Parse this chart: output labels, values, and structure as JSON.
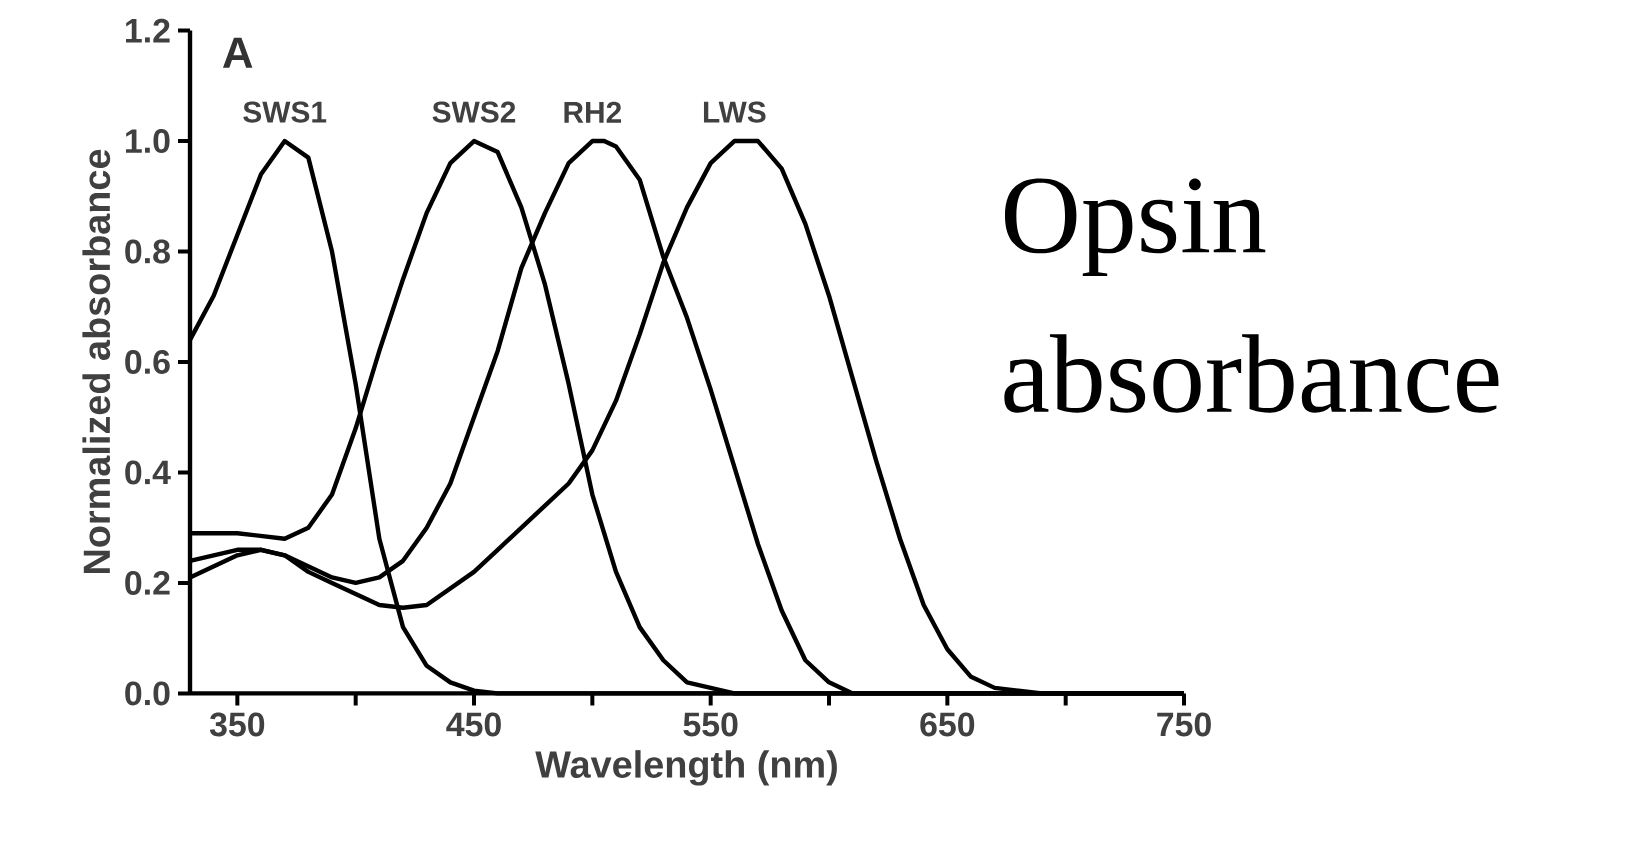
{
  "chart_data": {
    "type": "line",
    "title": "Opsin absorbance",
    "xlabel": "Wavelength (nm)",
    "ylabel": "Normalized absorbance",
    "annotations": [
      "A"
    ],
    "xlim": [
      330,
      750
    ],
    "ylim": [
      0,
      1.2
    ],
    "xticks": [
      350,
      {
        "value": 400,
        "label": null
      },
      450,
      {
        "value": 500,
        "label": null
      },
      550,
      {
        "value": 600,
        "label": null
      },
      650,
      {
        "value": 700,
        "label": null
      },
      750
    ],
    "yticks": [
      {
        "value": 0,
        "label": "0.0"
      },
      {
        "value": 0.2,
        "label": "0.2"
      },
      {
        "value": 0.4,
        "label": "0.4"
      },
      {
        "value": 0.6,
        "label": "0.6"
      },
      {
        "value": 0.8,
        "label": "0.8"
      },
      {
        "value": 1,
        "label": "1.0"
      },
      {
        "value": 1.2,
        "label": "1.2"
      }
    ],
    "grid": false,
    "legend": false,
    "marker": "none",
    "line_style": "solid",
    "series": [
      {
        "name": "SWS1",
        "color": "#000000",
        "x": [
          330,
          340,
          350,
          360,
          370,
          380,
          390,
          400,
          410,
          420,
          430,
          440,
          450,
          460,
          750
        ],
        "values": [
          0.64,
          0.72,
          0.83,
          0.94,
          1.0,
          0.97,
          0.8,
          0.56,
          0.28,
          0.12,
          0.05,
          0.02,
          0.005,
          0,
          0
        ]
      },
      {
        "name": "SWS2",
        "color": "#000000",
        "x": [
          330,
          350,
          370,
          380,
          390,
          400,
          410,
          420,
          430,
          440,
          450,
          460,
          470,
          480,
          490,
          500,
          510,
          520,
          530,
          540,
          560,
          750
        ],
        "values": [
          0.29,
          0.29,
          0.28,
          0.3,
          0.36,
          0.48,
          0.62,
          0.75,
          0.87,
          0.96,
          1.0,
          0.98,
          0.88,
          0.74,
          0.56,
          0.36,
          0.22,
          0.12,
          0.06,
          0.02,
          0,
          0
        ]
      },
      {
        "name": "RH2",
        "color": "#000000",
        "x": [
          330,
          350,
          360,
          370,
          380,
          390,
          400,
          410,
          420,
          430,
          440,
          450,
          460,
          470,
          480,
          490,
          500,
          505,
          510,
          520,
          530,
          540,
          550,
          560,
          570,
          580,
          590,
          600,
          610,
          750
        ],
        "values": [
          0.21,
          0.25,
          0.26,
          0.25,
          0.23,
          0.21,
          0.2,
          0.21,
          0.24,
          0.3,
          0.38,
          0.5,
          0.62,
          0.77,
          0.87,
          0.96,
          1.0,
          1.0,
          0.99,
          0.93,
          0.79,
          0.68,
          0.55,
          0.41,
          0.27,
          0.15,
          0.06,
          0.02,
          0,
          0
        ]
      },
      {
        "name": "LWS",
        "color": "#000000",
        "x": [
          330,
          350,
          360,
          370,
          380,
          390,
          400,
          410,
          420,
          430,
          440,
          450,
          460,
          470,
          480,
          490,
          500,
          510,
          520,
          530,
          540,
          550,
          560,
          570,
          580,
          590,
          600,
          610,
          620,
          630,
          640,
          650,
          660,
          670,
          680,
          690,
          750
        ],
        "values": [
          0.24,
          0.26,
          0.26,
          0.25,
          0.22,
          0.2,
          0.18,
          0.16,
          0.155,
          0.16,
          0.19,
          0.22,
          0.26,
          0.3,
          0.34,
          0.38,
          0.44,
          0.53,
          0.65,
          0.78,
          0.88,
          0.96,
          1.0,
          1.0,
          0.95,
          0.85,
          0.72,
          0.57,
          0.42,
          0.28,
          0.16,
          0.08,
          0.03,
          0.01,
          0.005,
          0,
          0
        ]
      }
    ]
  }
}
